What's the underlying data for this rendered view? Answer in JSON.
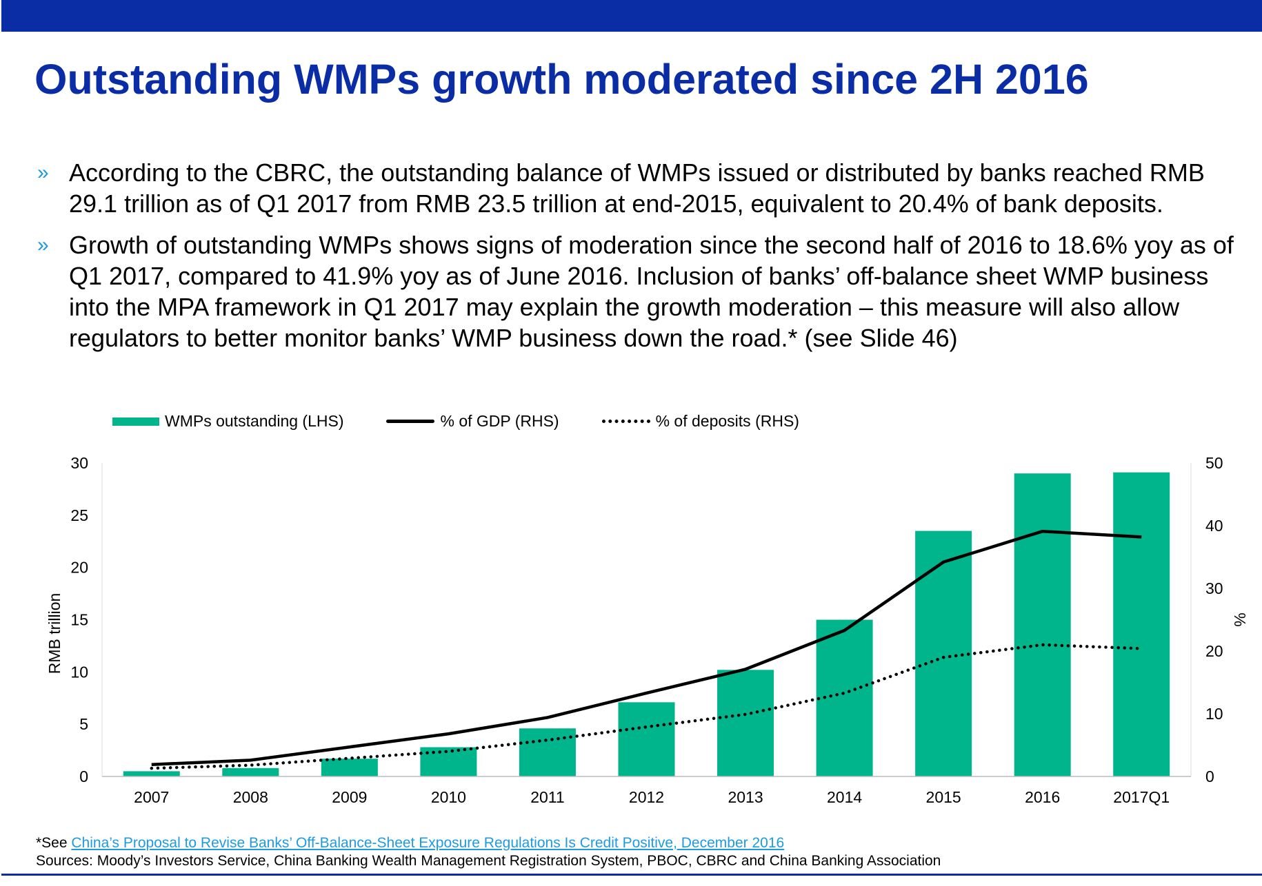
{
  "title": "Outstanding WMPs growth moderated since 2H 2016",
  "bullet_mark": "»",
  "bullets": [
    "According to the CBRC, the outstanding balance of WMPs issued or distributed by banks reached RMB 29.1 trillion as of Q1 2017 from RMB 23.5 trillion at end-2015, equivalent to 20.4% of bank deposits.",
    "Growth of outstanding WMPs shows signs of moderation since the second half of 2016 to 18.6% yoy as of Q1 2017, compared to 41.9% yoy as of June 2016. Inclusion of banks’ off-balance sheet WMP business into the MPA framework in Q1 2017 may explain the growth moderation – this measure will also allow regulators to better monitor banks’ WMP business down the road.* (see Slide 46)"
  ],
  "colors": {
    "brand": "#0A2DA5",
    "accent": "#1E9BE0",
    "bar": "#00B48C",
    "line": "#000000"
  },
  "chart_data": {
    "type": "bar+line",
    "categories": [
      "2007",
      "2008",
      "2009",
      "2010",
      "2011",
      "2012",
      "2013",
      "2014",
      "2015",
      "2016",
      "2017Q1"
    ],
    "series": [
      {
        "name": "WMPs outstanding (LHS)",
        "type": "bar",
        "axis": "left",
        "values": [
          0.5,
          0.8,
          1.7,
          2.8,
          4.6,
          7.1,
          10.2,
          15.0,
          23.5,
          29.0,
          29.1
        ]
      },
      {
        "name": "% of GDP (RHS)",
        "type": "line",
        "axis": "right",
        "values": [
          1.9,
          2.6,
          4.7,
          6.8,
          9.4,
          13.3,
          17.1,
          23.3,
          34.2,
          39.1,
          38.2
        ]
      },
      {
        "name": "% of deposits (RHS)",
        "type": "dotted-line",
        "axis": "right",
        "values": [
          1.3,
          1.8,
          2.9,
          4.0,
          5.8,
          7.9,
          9.9,
          13.3,
          19.0,
          21.0,
          20.4
        ]
      }
    ],
    "ylabel": "RMB trillion",
    "y2label": "%",
    "ylim": [
      0,
      30
    ],
    "y2lim": [
      0,
      50
    ],
    "yticks": [
      0,
      5,
      10,
      15,
      20,
      25,
      30
    ],
    "y2ticks": [
      0,
      10,
      20,
      30,
      40,
      50
    ],
    "grid": false,
    "legend": "top-left"
  },
  "footnote": {
    "prefix": "*See ",
    "link": "China’s Proposal to Revise Banks’ Off-Balance-Sheet Exposure Regulations Is Credit Positive, December 2016"
  },
  "sources": "Sources: Moody’s Investors Service, China Banking Wealth Management Registration System, PBOC, CBRC and China Banking Association"
}
